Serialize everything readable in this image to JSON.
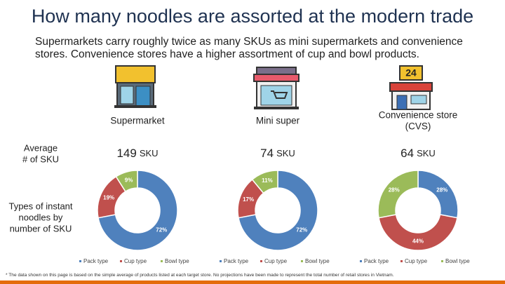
{
  "title": "How many noodles are assorted at the modern trade",
  "subtitle": [
    "Supermarkets carry roughly twice as many SKUs as mini supermarkets and convenience",
    "stores. Convenience stores have a higher assortment of cup and bowl products."
  ],
  "row_labels": [
    [
      "Average",
      "# of SKU"
    ],
    [
      "Types of instant",
      "noodles by",
      "number of SKU"
    ]
  ],
  "footnote": "* The data shown on this page is based on the simple average of products listed at each target store. No projections have been made to represent the total number of retail stores in Vietnam.",
  "chart_data": [
    {
      "type": "donut",
      "title": [
        "Supermarket"
      ],
      "sku_count": 149,
      "sku_unit": "SKU",
      "categories": [
        "Pack type",
        "Cup type",
        "Bowl type"
      ],
      "values": [
        72,
        19,
        9
      ],
      "value_labels": [
        "72%",
        "19%",
        "9%"
      ],
      "colors": [
        "#4f81bd",
        "#c0504d",
        "#9bbb59"
      ]
    },
    {
      "type": "donut",
      "title": [
        "Mini super"
      ],
      "sku_count": 74,
      "sku_unit": "SKU",
      "categories": [
        "Pack type",
        "Cup type",
        "Bowl type"
      ],
      "values": [
        72,
        17,
        11
      ],
      "value_labels": [
        "72%",
        "17%",
        "11%"
      ],
      "colors": [
        "#4f81bd",
        "#c0504d",
        "#9bbb59"
      ]
    },
    {
      "type": "donut",
      "title": [
        "Convenience store",
        "(CVS)"
      ],
      "sku_count": 64,
      "sku_unit": "SKU",
      "categories": [
        "Pack type",
        "Cup type",
        "Bowl type"
      ],
      "values": [
        28,
        44,
        28
      ],
      "value_labels": [
        "28%",
        "44%",
        "28%"
      ],
      "colors": [
        "#4f81bd",
        "#c0504d",
        "#9bbb59"
      ]
    }
  ]
}
